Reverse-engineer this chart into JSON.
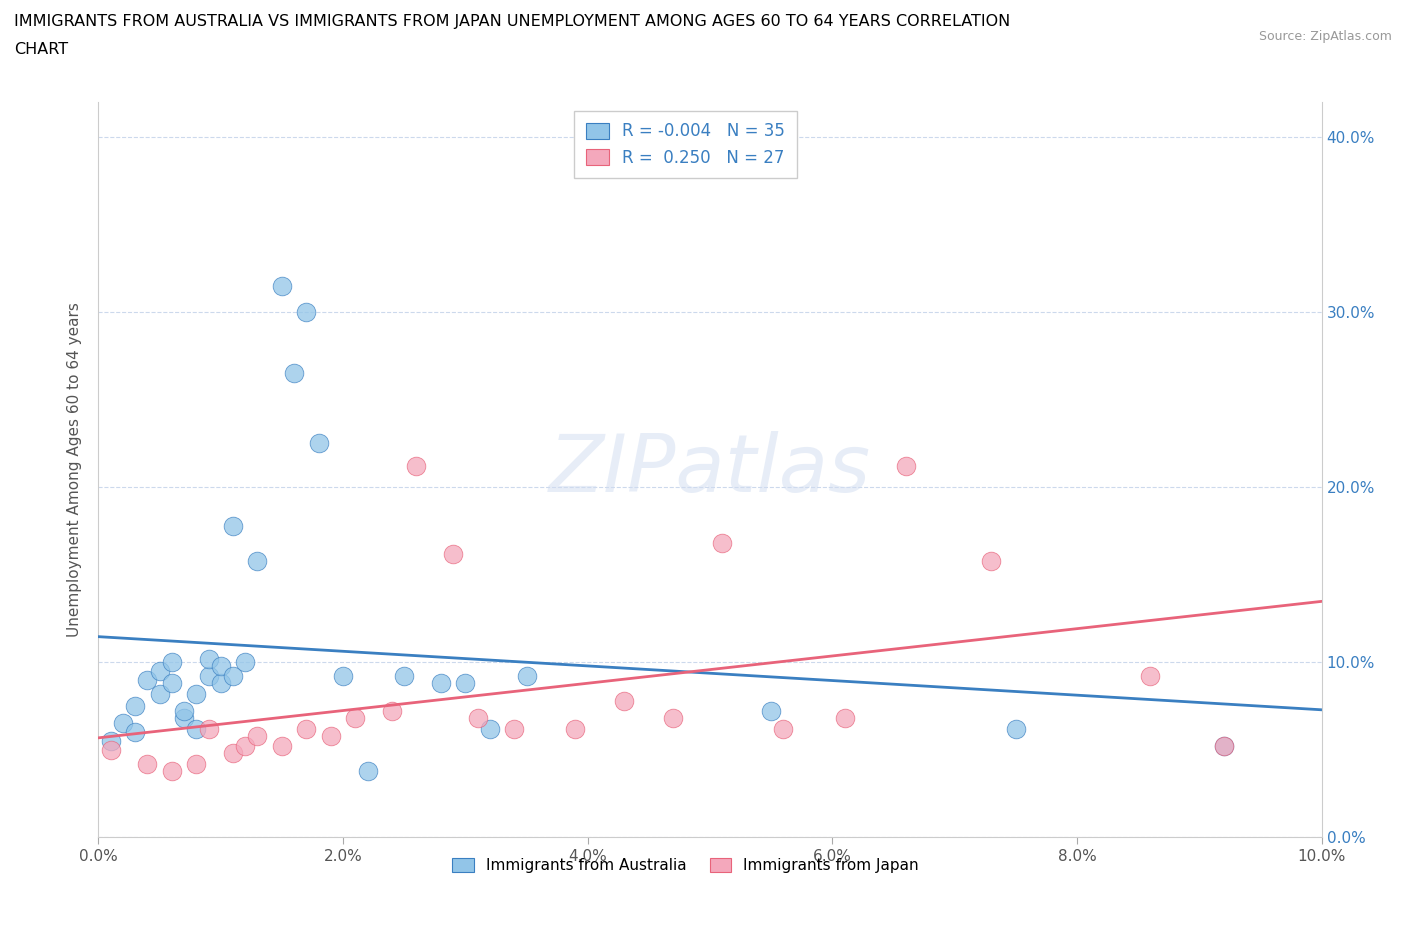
{
  "title_line1": "IMMIGRANTS FROM AUSTRALIA VS IMMIGRANTS FROM JAPAN UNEMPLOYMENT AMONG AGES 60 TO 64 YEARS CORRELATION",
  "title_line2": "CHART",
  "source_text": "Source: ZipAtlas.com",
  "ylabel": "Unemployment Among Ages 60 to 64 years",
  "xlim": [
    0.0,
    0.1
  ],
  "ylim": [
    0.0,
    0.42
  ],
  "x_ticks": [
    0.0,
    0.02,
    0.04,
    0.06,
    0.08,
    0.1
  ],
  "x_tick_labels": [
    "0.0%",
    "2.0%",
    "4.0%",
    "6.0%",
    "8.0%",
    "10.0%"
  ],
  "y_ticks": [
    0.0,
    0.1,
    0.2,
    0.3,
    0.4
  ],
  "y_tick_labels": [
    "0.0%",
    "10.0%",
    "20.0%",
    "30.0%",
    "40.0%"
  ],
  "australia_color": "#92C5E8",
  "japan_color": "#F4A8BC",
  "line_australia_color": "#3A7FC1",
  "line_japan_color": "#E8637A",
  "legend_R_australia": "-0.004",
  "legend_N_australia": "35",
  "legend_R_japan": "0.250",
  "legend_N_japan": "27",
  "australia_x": [
    0.001,
    0.002,
    0.003,
    0.003,
    0.004,
    0.005,
    0.005,
    0.006,
    0.006,
    0.007,
    0.007,
    0.008,
    0.008,
    0.009,
    0.009,
    0.01,
    0.01,
    0.011,
    0.011,
    0.012,
    0.013,
    0.015,
    0.016,
    0.017,
    0.018,
    0.02,
    0.022,
    0.025,
    0.028,
    0.03,
    0.032,
    0.035,
    0.055,
    0.075,
    0.092
  ],
  "australia_y": [
    0.055,
    0.065,
    0.075,
    0.06,
    0.09,
    0.095,
    0.082,
    0.1,
    0.088,
    0.068,
    0.072,
    0.062,
    0.082,
    0.092,
    0.102,
    0.088,
    0.098,
    0.178,
    0.092,
    0.1,
    0.158,
    0.315,
    0.265,
    0.3,
    0.225,
    0.092,
    0.038,
    0.092,
    0.088,
    0.088,
    0.062,
    0.092,
    0.072,
    0.062,
    0.052
  ],
  "japan_x": [
    0.001,
    0.004,
    0.006,
    0.008,
    0.009,
    0.011,
    0.012,
    0.013,
    0.015,
    0.017,
    0.019,
    0.021,
    0.024,
    0.026,
    0.029,
    0.031,
    0.034,
    0.039,
    0.043,
    0.047,
    0.051,
    0.056,
    0.061,
    0.066,
    0.073,
    0.086,
    0.092
  ],
  "japan_y": [
    0.05,
    0.042,
    0.038,
    0.042,
    0.062,
    0.048,
    0.052,
    0.058,
    0.052,
    0.062,
    0.058,
    0.068,
    0.072,
    0.212,
    0.162,
    0.068,
    0.062,
    0.062,
    0.078,
    0.068,
    0.168,
    0.062,
    0.068,
    0.212,
    0.158,
    0.092,
    0.052
  ],
  "watermark_text": "ZIPatlas",
  "figsize": [
    14.06,
    9.3
  ],
  "dpi": 100
}
